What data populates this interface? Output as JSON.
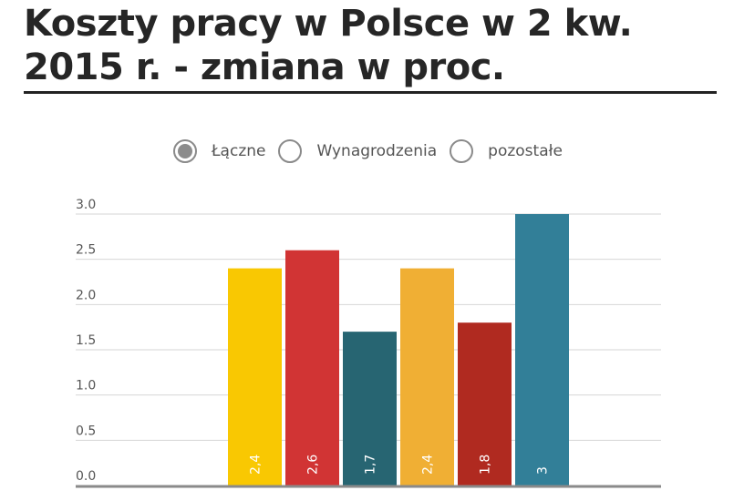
{
  "title": "Koszty pracy w Polsce w 2 kw. 2015 r. - zmiana w proc.",
  "legend": {
    "options": [
      {
        "label": "Łączne",
        "selected": true
      },
      {
        "label": "Wynagrodzenia",
        "selected": false
      },
      {
        "label": "pozostałe",
        "selected": false
      }
    ]
  },
  "chart_data": {
    "type": "bar",
    "title": "Koszty pracy w Polsce w 2 kw. 2015 r. - zmiana w proc.",
    "xlabel": "",
    "ylabel": "",
    "ylim": [
      0,
      3.0
    ],
    "yticks": [
      "0.0",
      "0.5",
      "1.0",
      "1.5",
      "2.0",
      "2.5",
      "3.0"
    ],
    "grid": true,
    "categories": [
      "",
      "",
      "",
      "",
      "",
      ""
    ],
    "values": [
      2.4,
      2.6,
      1.7,
      2.4,
      1.8,
      3.0
    ],
    "data_labels": [
      "2,4",
      "2,6",
      "1,7",
      "2,4",
      "1,8",
      "3"
    ],
    "colors": [
      "#F9C802",
      "#D13434",
      "#276572",
      "#F0AF34",
      "#B02A20",
      "#327F98"
    ]
  }
}
